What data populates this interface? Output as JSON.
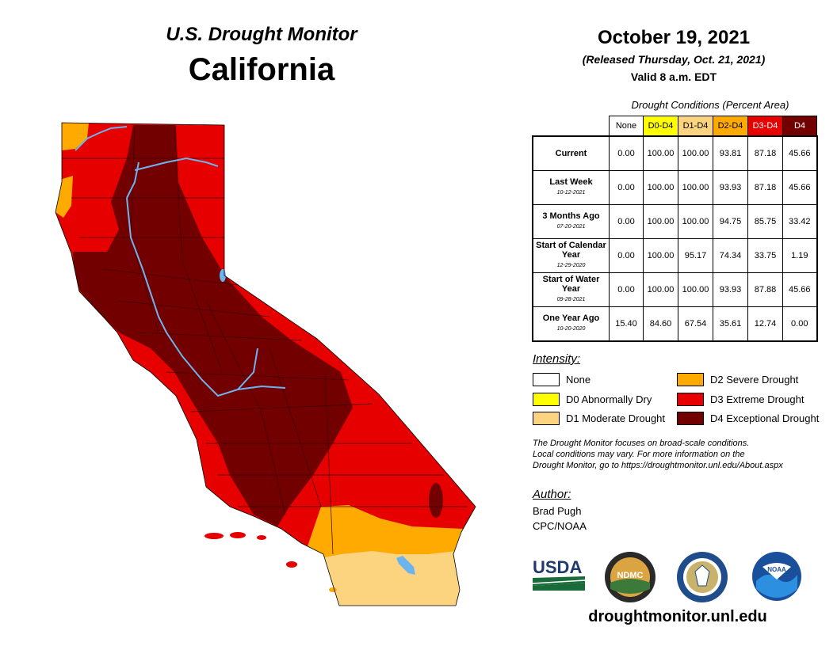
{
  "header": {
    "title": "U.S. Drought Monitor",
    "region": "California",
    "date": "October 19, 2021",
    "released": "(Released Thursday, Oct. 21, 2021)",
    "valid": "Valid 8 a.m. EDT"
  },
  "table": {
    "caption": "Drought Conditions (Percent Area)",
    "columns": [
      {
        "label": "None",
        "bg": "#ffffff",
        "fg": "#000000"
      },
      {
        "label": "D0-D4",
        "bg": "#ffff00",
        "fg": "#000000"
      },
      {
        "label": "D1-D4",
        "bg": "#fcd37f",
        "fg": "#000000"
      },
      {
        "label": "D2-D4",
        "bg": "#ffaa00",
        "fg": "#000000"
      },
      {
        "label": "D3-D4",
        "bg": "#e60000",
        "fg": "#ffffff"
      },
      {
        "label": "D4",
        "bg": "#730000",
        "fg": "#ffffff"
      }
    ],
    "rows": [
      {
        "label": "Current",
        "sub": "",
        "values": [
          "0.00",
          "100.00",
          "100.00",
          "93.81",
          "87.18",
          "45.66"
        ]
      },
      {
        "label": "Last Week",
        "sub": "10-12-2021",
        "values": [
          "0.00",
          "100.00",
          "100.00",
          "93.93",
          "87.18",
          "45.66"
        ]
      },
      {
        "label": "3 Months Ago",
        "sub": "07-20-2021",
        "values": [
          "0.00",
          "100.00",
          "100.00",
          "94.75",
          "85.75",
          "33.42"
        ]
      },
      {
        "label": "Start of Calendar Year",
        "sub": "12-29-2020",
        "values": [
          "0.00",
          "100.00",
          "95.17",
          "74.34",
          "33.75",
          "1.19"
        ]
      },
      {
        "label": "Start of Water Year",
        "sub": "09-28-2021",
        "values": [
          "0.00",
          "100.00",
          "100.00",
          "93.93",
          "87.88",
          "45.66"
        ]
      },
      {
        "label": "One Year Ago",
        "sub": "10-20-2020",
        "values": [
          "15.40",
          "84.60",
          "67.54",
          "35.61",
          "12.74",
          "0.00"
        ]
      }
    ]
  },
  "legend": {
    "title": "Intensity:",
    "items": [
      {
        "label": "None",
        "color": "#ffffff"
      },
      {
        "label": "D0 Abnormally Dry",
        "color": "#ffff00"
      },
      {
        "label": "D1 Moderate Drought",
        "color": "#fcd37f"
      },
      {
        "label": "D2 Severe Drought",
        "color": "#ffaa00"
      },
      {
        "label": "D3 Extreme Drought",
        "color": "#e60000"
      },
      {
        "label": "D4 Exceptional Drought",
        "color": "#730000"
      }
    ]
  },
  "note": {
    "line1": "The Drought Monitor focuses on broad-scale conditions.",
    "line2": "Local conditions may vary. For more information on the",
    "line3": "Drought Monitor, go to https://droughtmonitor.unl.edu/About.aspx"
  },
  "author": {
    "heading": "Author:",
    "name": "Brad Pugh",
    "org": "CPC/NOAA"
  },
  "logos": {
    "usda": "USDA",
    "ndmc": "NDMC",
    "noaa": "NOAA"
  },
  "footer_url": "droughtmonitor.unl.edu",
  "map_colors": {
    "d1": "#fcd37f",
    "d2": "#ffaa00",
    "d3": "#e60000",
    "d4": "#730000",
    "water": "#6cb4ee",
    "county": "#3a0000"
  }
}
